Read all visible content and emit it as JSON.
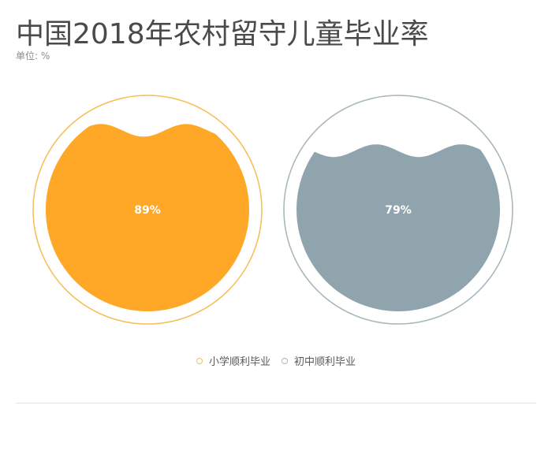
{
  "chart_data": {
    "type": "liquidfill",
    "title": "中国2018年农村留守儿童毕业率",
    "unit_label": "单位: %",
    "series": [
      {
        "name": "小学顺利毕业",
        "value": 89,
        "label": "89%",
        "color": "#ffa726",
        "border_color": "#f6bf5a"
      },
      {
        "name": "初中顺利毕业",
        "value": 79,
        "label": "79%",
        "color": "#90a4ae",
        "border_color": "#a9b7be"
      }
    ],
    "legend_position": "bottom-center",
    "ylim": [
      0,
      100
    ]
  }
}
